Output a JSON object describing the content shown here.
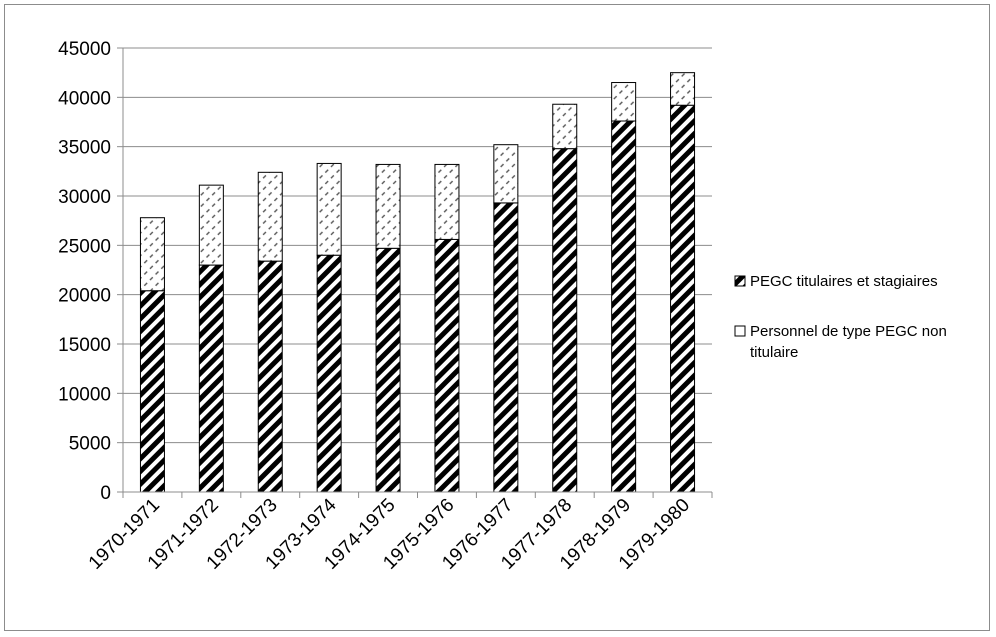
{
  "chart_data": {
    "type": "bar",
    "stacked": true,
    "categories": [
      "1970-1971",
      "1971-1972",
      "1972-1973",
      "1973-1974",
      "1974-1975",
      "1975-1976",
      "1976-1977",
      "1977-1978",
      "1978-1979",
      "1979-1980"
    ],
    "series": [
      {
        "name": "PEGC titulaires et stagiaires",
        "values": [
          20400,
          23000,
          23400,
          24000,
          24700,
          25600,
          29300,
          34800,
          37600,
          39200
        ],
        "pattern": "dense-diagonal-hatch",
        "color": "#000000"
      },
      {
        "name": "Personnel de type PEGC non titulaire",
        "values": [
          7400,
          8100,
          9000,
          9300,
          8500,
          7600,
          5900,
          4500,
          3900,
          3300
        ],
        "pattern": "light-dashed-diagonal",
        "color": "#ffffff"
      }
    ],
    "title": "",
    "xlabel": "",
    "ylabel": "",
    "ylim": [
      0,
      45000
    ],
    "yticks": [
      0,
      5000,
      10000,
      15000,
      20000,
      25000,
      30000,
      35000,
      40000,
      45000
    ],
    "grid": true,
    "legend_position": "right",
    "legend": {
      "items": [
        {
          "label": "PEGC titulaires et stagiaires"
        },
        {
          "label_lines": [
            "Personnel de type PEGC non",
            "titulaire"
          ]
        }
      ]
    }
  }
}
